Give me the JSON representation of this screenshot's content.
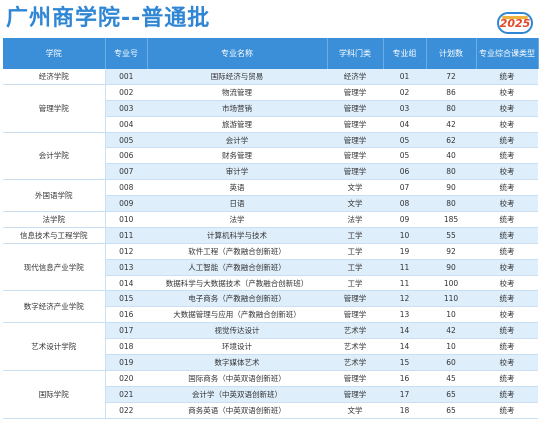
{
  "header": {
    "title": "广州商学院--普通批",
    "badge": "2025"
  },
  "columns": [
    "学院",
    "专业号",
    "专业名称",
    "学科门类",
    "专业组",
    "计划数",
    "专业综合课类型"
  ],
  "groups": [
    {
      "college": "经济学院",
      "rows": [
        [
          "001",
          "国际经济与贸易",
          "经济学",
          "01",
          "72",
          "统考"
        ]
      ]
    },
    {
      "college": "管理学院",
      "rows": [
        [
          "002",
          "物流管理",
          "管理学",
          "02",
          "86",
          "校考"
        ],
        [
          "003",
          "市场营销",
          "管理学",
          "03",
          "80",
          "校考"
        ],
        [
          "004",
          "旅游管理",
          "管理学",
          "04",
          "42",
          "校考"
        ]
      ]
    },
    {
      "college": "会计学院",
      "rows": [
        [
          "005",
          "会计学",
          "管理学",
          "05",
          "62",
          "统考"
        ],
        [
          "006",
          "财务管理",
          "管理学",
          "05",
          "40",
          "统考"
        ],
        [
          "007",
          "审计学",
          "管理学",
          "06",
          "80",
          "校考"
        ]
      ]
    },
    {
      "college": "外国语学院",
      "rows": [
        [
          "008",
          "英语",
          "文学",
          "07",
          "90",
          "统考"
        ],
        [
          "009",
          "日语",
          "文学",
          "08",
          "80",
          "校考"
        ]
      ]
    },
    {
      "college": "法学院",
      "rows": [
        [
          "010",
          "法学",
          "法学",
          "09",
          "185",
          "统考"
        ]
      ]
    },
    {
      "college": "信息技术与工程学院",
      "rows": [
        [
          "011",
          "计算机科学与技术",
          "工学",
          "10",
          "55",
          "统考"
        ]
      ]
    },
    {
      "college": "现代信息产业学院",
      "rows": [
        [
          "012",
          "软件工程（产教融合创新班）",
          "工学",
          "19",
          "92",
          "统考"
        ],
        [
          "013",
          "人工智能（产教融合创新班）",
          "工学",
          "11",
          "90",
          "校考"
        ],
        [
          "014",
          "数据科学与大数据技术（产教融合创新班）",
          "工学",
          "11",
          "100",
          "校考"
        ]
      ]
    },
    {
      "college": "数字经济产业学院",
      "rows": [
        [
          "015",
          "电子商务（产教融合创新班）",
          "管理学",
          "12",
          "110",
          "统考"
        ],
        [
          "016",
          "大数据管理与应用（产教融合创新班）",
          "管理学",
          "13",
          "10",
          "校考"
        ]
      ]
    },
    {
      "college": "艺术设计学院",
      "rows": [
        [
          "017",
          "视觉传达设计",
          "艺术学",
          "14",
          "42",
          "统考"
        ],
        [
          "018",
          "环境设计",
          "艺术学",
          "14",
          "10",
          "统考"
        ],
        [
          "019",
          "数字媒体艺术",
          "艺术学",
          "15",
          "60",
          "校考"
        ]
      ]
    },
    {
      "college": "国际学院",
      "rows": [
        [
          "020",
          "国际商务（中英双语创新班）",
          "管理学",
          "16",
          "45",
          "统考"
        ],
        [
          "021",
          "会计学（中英双语创新班）",
          "管理学",
          "17",
          "65",
          "统考"
        ],
        [
          "022",
          "商务英语（中英双语创新班）",
          "文学",
          "18",
          "65",
          "统考"
        ]
      ]
    }
  ]
}
